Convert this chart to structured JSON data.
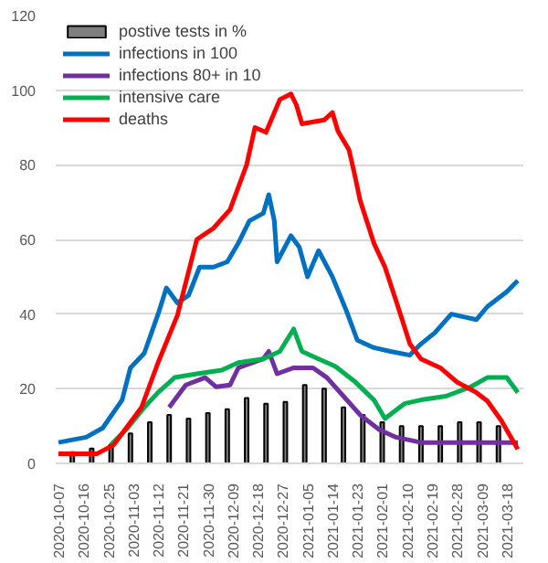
{
  "chart_data": {
    "type": "line",
    "xlim": [
      "2020-10-06",
      "2021-03-24"
    ],
    "xticks": [
      "2020-10-07",
      "2020-10-16",
      "2020-10-25",
      "2020-11-03",
      "2020-11-12",
      "2020-11-21",
      "2020-11-30",
      "2020-12-09",
      "2020-12-18",
      "2020-12-27",
      "2021-01-05",
      "2021-01-14",
      "2021-01-23",
      "2021-02-01",
      "2021-02-10",
      "2021-02-19",
      "2021-02-28",
      "2021-03-09",
      "2021-03-18"
    ],
    "ylim": [
      0,
      120
    ],
    "yticks": [
      0,
      20,
      40,
      60,
      80,
      100,
      120
    ],
    "grid": "y",
    "legend": "top left",
    "series": [
      {
        "name": "postive tests in %",
        "type": "bar",
        "color": "#7f7f7f",
        "x": [
          "2020-10-12",
          "2020-10-19",
          "2020-10-26",
          "2020-11-02",
          "2020-11-09",
          "2020-11-16",
          "2020-11-23",
          "2020-11-30",
          "2020-12-07",
          "2020-12-14",
          "2020-12-21",
          "2020-12-28",
          "2021-01-04",
          "2021-01-11",
          "2021-01-18",
          "2021-01-25",
          "2021-02-01",
          "2021-02-08",
          "2021-02-15",
          "2021-02-22",
          "2021-03-01",
          "2021-03-08",
          "2021-03-15"
        ],
        "values": [
          3,
          4,
          5,
          8,
          11,
          13,
          12,
          13.5,
          14.5,
          17.5,
          16,
          16.5,
          21,
          20,
          15,
          13,
          11,
          10,
          10,
          10,
          11,
          11,
          10
        ]
      },
      {
        "name": "infections in 100",
        "color": "#0070c0",
        "x": [
          "2020-10-07",
          "2020-10-17",
          "2020-10-23",
          "2020-10-30",
          "2020-11-02",
          "2020-11-07",
          "2020-11-12",
          "2020-11-15",
          "2020-11-19",
          "2020-11-23",
          "2020-11-27",
          "2020-12-02",
          "2020-12-07",
          "2020-12-11",
          "2020-12-15",
          "2020-12-20",
          "2020-12-22",
          "2020-12-24",
          "2020-12-25",
          "2020-12-30",
          "2021-01-02",
          "2021-01-05",
          "2021-01-09",
          "2021-01-14",
          "2021-01-19",
          "2021-01-23",
          "2021-01-29",
          "2021-02-04",
          "2021-02-11",
          "2021-02-15",
          "2021-02-20",
          "2021-02-26",
          "2021-03-07",
          "2021-03-11",
          "2021-03-18",
          "2021-03-22"
        ],
        "values": [
          5.6,
          7,
          9.5,
          17,
          25.6,
          29.5,
          40,
          47,
          43,
          45,
          52.6,
          52.6,
          54,
          59,
          65,
          67,
          72,
          65,
          54,
          61,
          58,
          50,
          57,
          50,
          41,
          33,
          31,
          30,
          29,
          32,
          35,
          40,
          38.5,
          42,
          46,
          49
        ]
      },
      {
        "name": "infections 80+ in 10",
        "color": "#7030a0",
        "x": [
          "2020-11-16",
          "2020-11-22",
          "2020-11-29",
          "2020-12-03",
          "2020-12-08",
          "2020-12-11",
          "2020-12-20",
          "2020-12-22",
          "2020-12-25",
          "2020-12-31",
          "2021-01-07",
          "2021-01-12",
          "2021-01-18",
          "2021-01-24",
          "2021-01-31",
          "2021-02-06",
          "2021-02-15",
          "2021-02-26",
          "2021-03-22"
        ],
        "values": [
          15,
          21,
          23,
          20.5,
          21,
          25.6,
          28,
          30,
          24,
          25.6,
          25.6,
          23,
          18,
          13,
          9,
          7,
          5.6,
          5.6,
          5.6
        ]
      },
      {
        "name": "intensive care",
        "color": "#00b050",
        "x": [
          "2020-10-26",
          "2020-11-01",
          "2020-11-07",
          "2020-11-12",
          "2020-11-18",
          "2020-11-26",
          "2020-12-05",
          "2020-12-11",
          "2020-12-20",
          "2020-12-26",
          "2020-12-31",
          "2021-01-03",
          "2021-01-09",
          "2021-01-15",
          "2021-01-22",
          "2021-01-29",
          "2021-02-02",
          "2021-02-09",
          "2021-02-15",
          "2021-02-24",
          "2021-03-05",
          "2021-03-11",
          "2021-03-18",
          "2021-03-22"
        ],
        "values": [
          5,
          9.5,
          15,
          19,
          23,
          24,
          25,
          27,
          28,
          30,
          36,
          30,
          28,
          26,
          22,
          17,
          12,
          16,
          17,
          18,
          20.5,
          23,
          23,
          19
        ]
      },
      {
        "name": "deaths",
        "color": "#ff0000",
        "x": [
          "2020-10-07",
          "2020-10-21",
          "2020-10-27",
          "2020-10-31",
          "2020-11-06",
          "2020-11-12",
          "2020-11-19",
          "2020-11-26",
          "2020-12-02",
          "2020-12-08",
          "2020-12-13",
          "2020-12-14",
          "2020-12-17",
          "2020-12-21",
          "2020-12-24",
          "2020-12-26",
          "2020-12-30",
          "2021-01-01",
          "2021-01-03",
          "2021-01-11",
          "2021-01-14",
          "2021-01-16",
          "2021-01-20",
          "2021-01-22",
          "2021-01-24",
          "2021-01-29",
          "2021-02-02",
          "2021-02-06",
          "2021-02-11",
          "2021-02-15",
          "2021-02-22",
          "2021-02-28",
          "2021-03-07",
          "2021-03-11",
          "2021-03-16",
          "2021-03-22"
        ],
        "values": [
          2.6,
          2.6,
          5,
          9,
          15,
          27,
          39.7,
          60,
          63,
          68,
          78,
          80,
          90,
          88.7,
          94,
          97.5,
          99,
          96,
          91,
          92,
          94,
          89,
          84,
          77.5,
          70.5,
          59,
          52.6,
          43.6,
          32,
          28,
          25.6,
          21.8,
          19,
          16.7,
          11.5,
          3.8
        ]
      }
    ]
  }
}
